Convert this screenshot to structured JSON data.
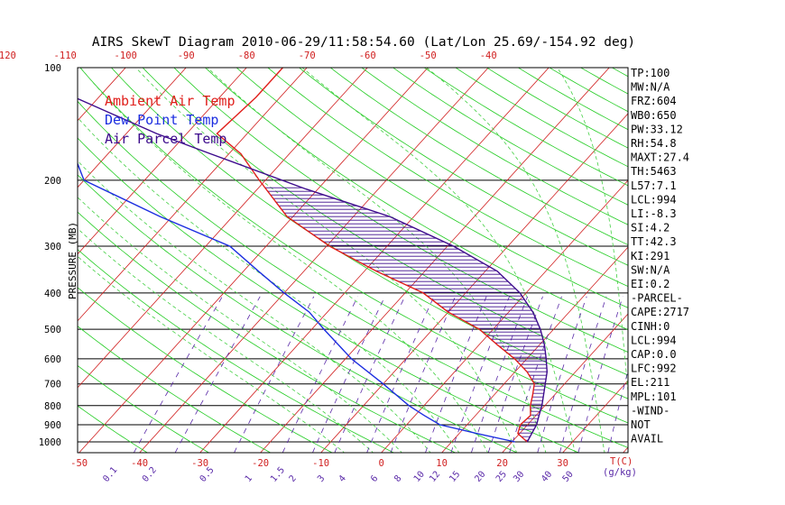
{
  "chart_data": {
    "type": "line",
    "title": "AIRS SkewT Diagram 2010-06-29/11:58:54.60 (Lat/Lon 25.69/-154.92 deg)",
    "ylabel": "PRESSURE (MB)",
    "xlabel_right": "T(C)",
    "mixing_ratio_unit": "(g/kg)",
    "y_scale": "log",
    "ylim": [
      1050,
      100
    ],
    "xlim_bottom": [
      -55,
      40
    ],
    "pressure_ticks": [
      100,
      200,
      300,
      400,
      500,
      600,
      700,
      800,
      900,
      1000
    ],
    "pressure_lines": [
      200,
      300,
      400,
      500,
      600,
      700,
      800,
      900,
      1000
    ],
    "top_temp_ticks": [
      -120,
      -110,
      -100,
      -90,
      -80,
      -70,
      -60,
      -50,
      -40
    ],
    "bottom_temp_ticks": [
      -50,
      -40,
      -30,
      -20,
      -10,
      0,
      10,
      20,
      30
    ],
    "mixing_ratio_ticks": [
      {
        "label": "0.1",
        "t": -44.5
      },
      {
        "label": "0.2",
        "t": -38.0
      },
      {
        "label": "0.5",
        "t": -28.5
      },
      {
        "label": "1",
        "t": -21.0
      },
      {
        "label": "1.5",
        "t": -16.8
      },
      {
        "label": "2",
        "t": -13.7
      },
      {
        "label": "3",
        "t": -9.0
      },
      {
        "label": "4",
        "t": -5.5
      },
      {
        "label": "6",
        "t": -0.2
      },
      {
        "label": "8",
        "t": 3.7
      },
      {
        "label": "10",
        "t": 6.9
      },
      {
        "label": "12",
        "t": 9.5
      },
      {
        "label": "15",
        "t": 12.8
      },
      {
        "label": "20",
        "t": 17.0
      },
      {
        "label": "25",
        "t": 20.5
      },
      {
        "label": "30",
        "t": 23.4
      },
      {
        "label": "40",
        "t": 28.0
      },
      {
        "label": "50",
        "t": 31.5
      }
    ],
    "legend": [
      {
        "name": "Ambient Air Temp",
        "color": "#e0201c"
      },
      {
        "name": "Dew Point Temp",
        "color": "#1c2ee0"
      },
      {
        "name": "Air Parcel Temp",
        "color": "#3c0a8c"
      }
    ],
    "series": [
      {
        "name": "Ambient Air Temp",
        "color": "#e0201c",
        "points": [
          [
            1000,
            22.5
          ],
          [
            950,
            19.7
          ],
          [
            900,
            18.8
          ],
          [
            850,
            19.1
          ],
          [
            800,
            17.6
          ],
          [
            750,
            16.4
          ],
          [
            700,
            15.0
          ],
          [
            650,
            12.0
          ],
          [
            600,
            8.0
          ],
          [
            550,
            3.0
          ],
          [
            500,
            -2.3
          ],
          [
            450,
            -10.0
          ],
          [
            400,
            -17.0
          ],
          [
            350,
            -28.0
          ],
          [
            300,
            -39.5
          ],
          [
            250,
            -51.0
          ],
          [
            200,
            -61.0
          ],
          [
            170,
            -68.0
          ],
          [
            150,
            -75.0
          ],
          [
            120,
            -74.0
          ],
          [
            100,
            -74.0
          ]
        ]
      },
      {
        "name": "Dew Point Temp",
        "color": "#1c2ee0",
        "points": [
          [
            1000,
            20.5
          ],
          [
            950,
            13.0
          ],
          [
            900,
            5.5
          ],
          [
            850,
            1.5
          ],
          [
            800,
            -2.5
          ],
          [
            700,
            -10.0
          ],
          [
            600,
            -19.0
          ],
          [
            500,
            -28.0
          ],
          [
            450,
            -33.0
          ],
          [
            400,
            -40.0
          ],
          [
            350,
            -47.5
          ],
          [
            300,
            -56.0
          ],
          [
            250,
            -72.0
          ],
          [
            200,
            -90.0
          ],
          [
            150,
            -100.0
          ],
          [
            100,
            -110.0
          ]
        ]
      },
      {
        "name": "Air Parcel Temp",
        "color": "#3c0a8c",
        "points": [
          [
            1000,
            22.5
          ],
          [
            950,
            22.0
          ],
          [
            900,
            21.5
          ],
          [
            850,
            20.5
          ],
          [
            800,
            19.5
          ],
          [
            750,
            18.2
          ],
          [
            700,
            16.8
          ],
          [
            650,
            15.3
          ],
          [
            600,
            13.2
          ],
          [
            550,
            10.8
          ],
          [
            500,
            7.8
          ],
          [
            450,
            4.0
          ],
          [
            400,
            -1.0
          ],
          [
            350,
            -8.0
          ],
          [
            300,
            -19.0
          ],
          [
            250,
            -34.0
          ],
          [
            211,
            -52.0
          ],
          [
            170,
            -73.0
          ],
          [
            150,
            -85.0
          ],
          [
            120,
            -104.0
          ],
          [
            100,
            -118.0
          ]
        ]
      }
    ],
    "indices": [
      "TP:100",
      "MW:N/A",
      "FRZ:604",
      "WB0:650",
      "PW:33.12",
      "RH:54.8",
      "MAXT:27.4",
      "TH:5463",
      "L57:7.1",
      "LCL:994",
      "LI:-8.3",
      "SI:4.2",
      "TT:42.3",
      "KI:291",
      "SW:N/A",
      "EI:0.2",
      "-PARCEL-",
      "CAPE:2717",
      "CINH:0",
      "LCL:994",
      "CAP:0.0",
      "LFC:992",
      "EL:211",
      "MPL:101",
      "-WIND-",
      "NOT",
      "AVAIL"
    ],
    "colors": {
      "isotherm": "#d01e1e",
      "dry_adiabat": "#22cc22",
      "moist_adiabat": "#44d044",
      "mixing_ratio": "#5a2aa8",
      "isobar": "#000000",
      "cape_hatch": "#3c0a8c",
      "top_tick_text": "#d01e1e",
      "bottom_tick_text": "#d01e1e",
      "mixing_tick_text": "#5a2aa8"
    }
  }
}
